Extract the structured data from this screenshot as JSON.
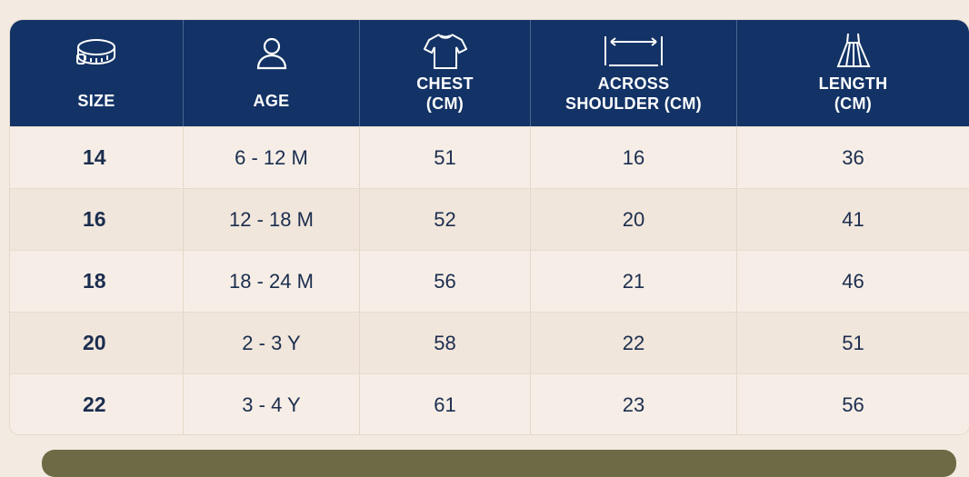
{
  "header": {
    "columns": [
      {
        "label": "SIZE",
        "icon": "measuring-tape-icon"
      },
      {
        "label": "AGE",
        "icon": "person-icon"
      },
      {
        "label": "CHEST\n(CM)",
        "icon": "shirt-icon"
      },
      {
        "label": "ACROSS\nSHOULDER (CM)",
        "icon": "shoulder-width-icon"
      },
      {
        "label": "LENGTH\n(CM)",
        "icon": "dress-icon"
      }
    ]
  },
  "rows": [
    {
      "size": "14",
      "age": "6 - 12 M",
      "chest": "51",
      "shoulder": "16",
      "length": "36"
    },
    {
      "size": "16",
      "age": "12 - 18 M",
      "chest": "52",
      "shoulder": "20",
      "length": "41"
    },
    {
      "size": "18",
      "age": "18 - 24 M",
      "chest": "56",
      "shoulder": "21",
      "length": "46"
    },
    {
      "size": "20",
      "age": "2 - 3 Y",
      "chest": "58",
      "shoulder": "22",
      "length": "51"
    },
    {
      "size": "22",
      "age": "3 - 4 Y",
      "chest": "61",
      "shoulder": "23",
      "length": "56"
    }
  ],
  "colors": {
    "header_bg": "#133366",
    "text": "#1b2d4f",
    "page_bg": "#f3ebe1",
    "footer": "#6d6a45"
  }
}
